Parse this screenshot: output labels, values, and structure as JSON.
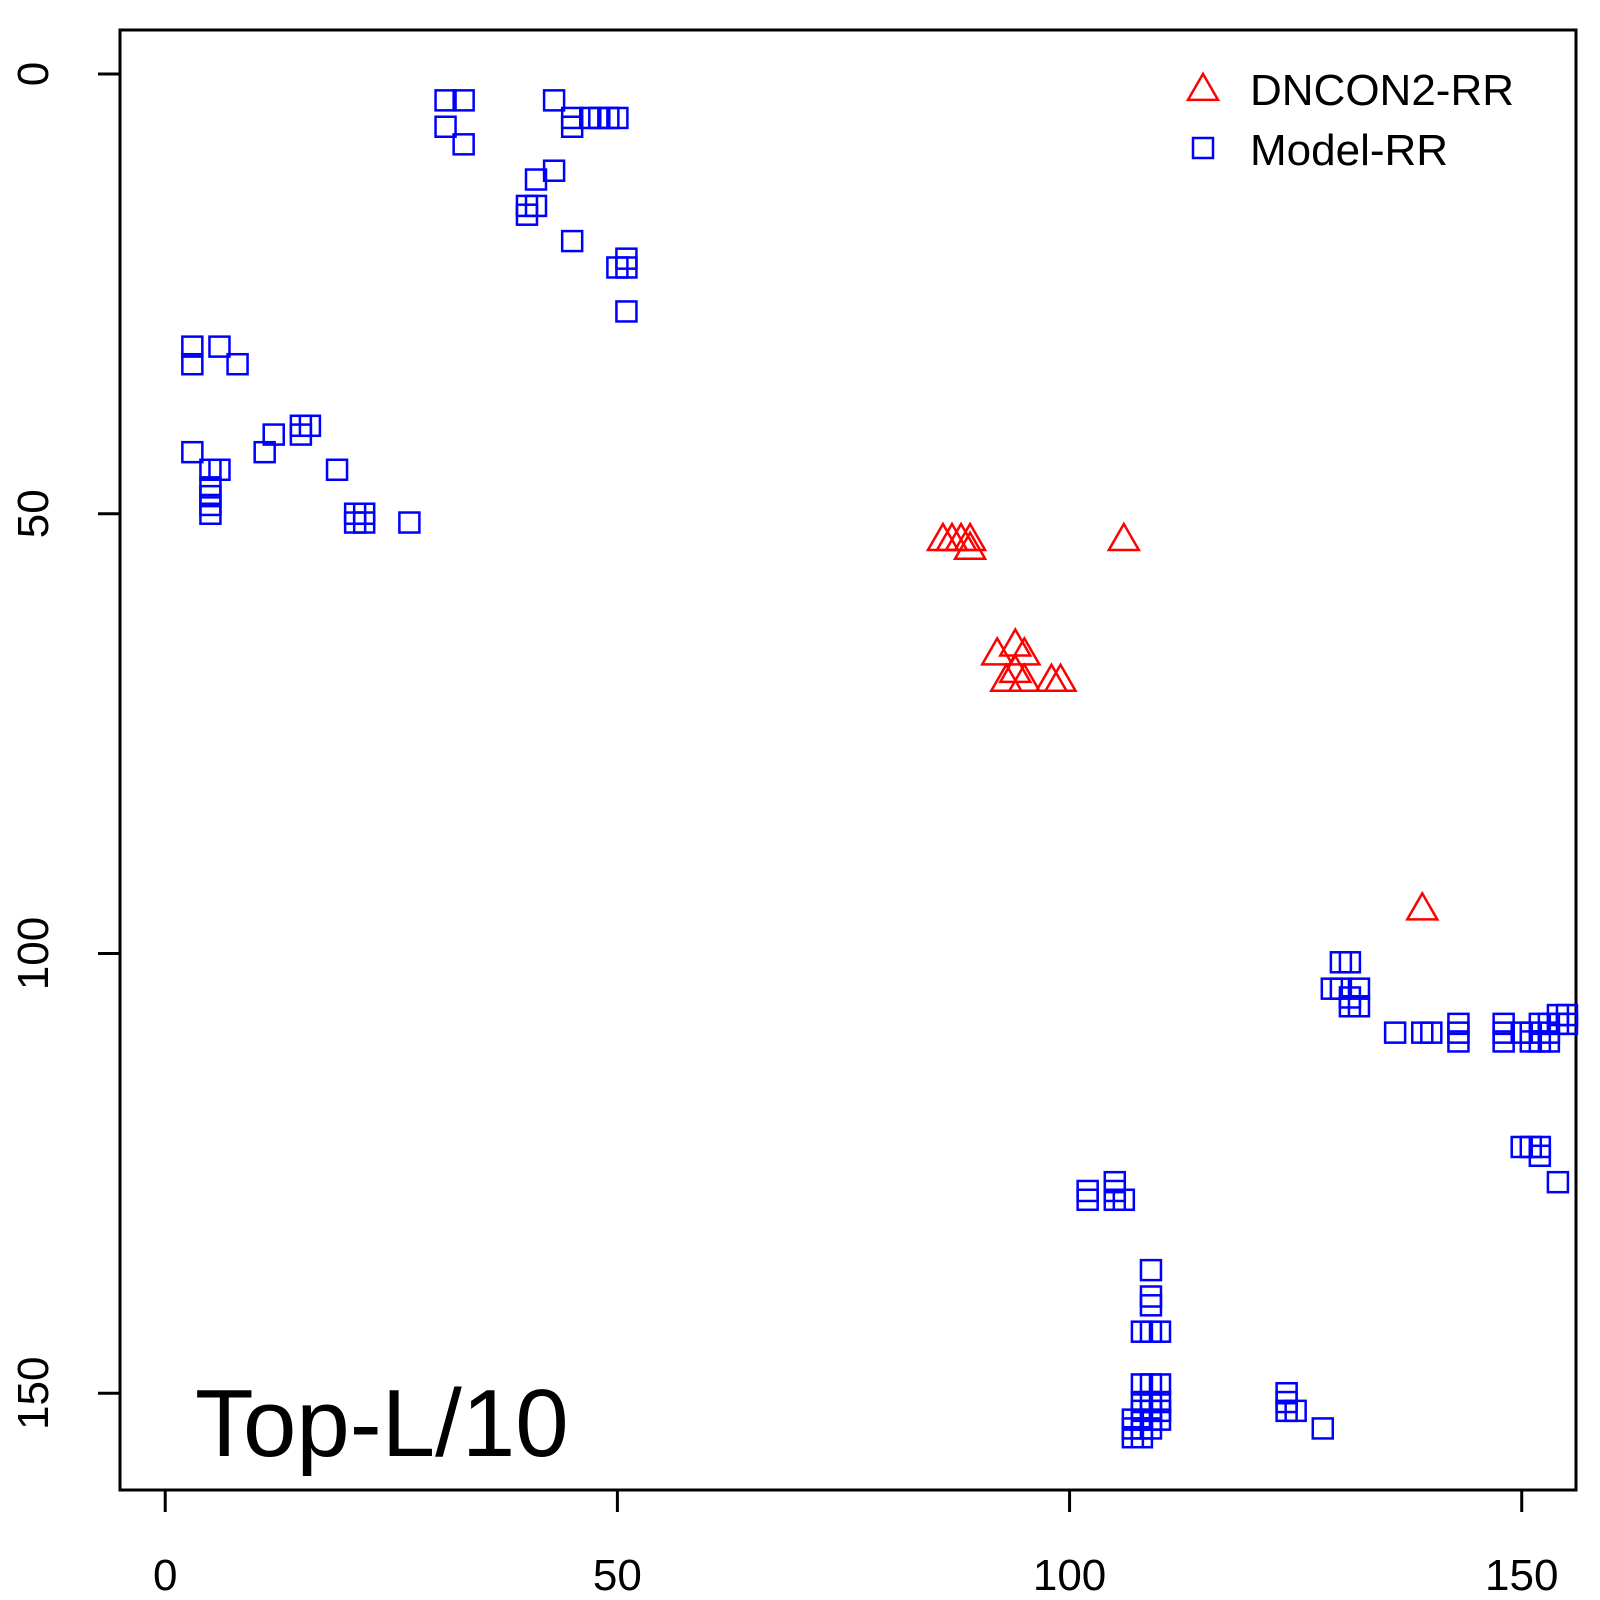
{
  "chart_data": {
    "type": "scatter",
    "title": "",
    "xlabel": "",
    "ylabel": "",
    "annotation": "Top-L/10",
    "xlim": [
      -5,
      156
    ],
    "ylim": [
      -5,
      161
    ],
    "y_inverted": true,
    "x_ticks": [
      "0",
      "50",
      "100",
      "150"
    ],
    "y_ticks": [
      "0",
      "50",
      "100",
      "150"
    ],
    "legend_position": "top-right",
    "legend": [
      {
        "name": "DNCON2-RR",
        "marker": "triangle",
        "color": "#ff0000"
      },
      {
        "name": "Model-RR",
        "marker": "square",
        "color": "#0000ff"
      }
    ],
    "series": [
      {
        "name": "DNCON2-RR",
        "marker": "triangle",
        "color": "#ff0000",
        "points": [
          [
            86,
            53
          ],
          [
            87,
            53
          ],
          [
            88,
            53
          ],
          [
            89,
            53
          ],
          [
            89,
            54
          ],
          [
            106,
            53
          ],
          [
            92,
            66
          ],
          [
            94,
            65
          ],
          [
            95,
            66
          ],
          [
            93,
            69
          ],
          [
            94,
            68
          ],
          [
            95,
            69
          ],
          [
            98,
            69
          ],
          [
            99,
            69
          ],
          [
            139,
            95
          ]
        ]
      },
      {
        "name": "Model-RR",
        "marker": "square",
        "color": "#0000ff",
        "points": [
          [
            31,
            3
          ],
          [
            33,
            3
          ],
          [
            31,
            6
          ],
          [
            33,
            8
          ],
          [
            43,
            3
          ],
          [
            45,
            5
          ],
          [
            45,
            6
          ],
          [
            47,
            5
          ],
          [
            48,
            5
          ],
          [
            49,
            5
          ],
          [
            50,
            5
          ],
          [
            43,
            11
          ],
          [
            41,
            12
          ],
          [
            40,
            15
          ],
          [
            41,
            15
          ],
          [
            40,
            16
          ],
          [
            45,
            19
          ],
          [
            51,
            21
          ],
          [
            51,
            22
          ],
          [
            50,
            22
          ],
          [
            51,
            27
          ],
          [
            3,
            31
          ],
          [
            6,
            31
          ],
          [
            3,
            33
          ],
          [
            8,
            33
          ],
          [
            3,
            43
          ],
          [
            11,
            43
          ],
          [
            12,
            41
          ],
          [
            15,
            40
          ],
          [
            16,
            40
          ],
          [
            15,
            41
          ],
          [
            5,
            45
          ],
          [
            6,
            45
          ],
          [
            19,
            45
          ],
          [
            5,
            47
          ],
          [
            5,
            48
          ],
          [
            5,
            49
          ],
          [
            5,
            50
          ],
          [
            21,
            50
          ],
          [
            22,
            50
          ],
          [
            21,
            51
          ],
          [
            22,
            51
          ],
          [
            27,
            51
          ],
          [
            130,
            101
          ],
          [
            131,
            101
          ],
          [
            129,
            104
          ],
          [
            130,
            104
          ],
          [
            131,
            105
          ],
          [
            132,
            104
          ],
          [
            131,
            106
          ],
          [
            132,
            106
          ],
          [
            136,
            109
          ],
          [
            139,
            109
          ],
          [
            140,
            109
          ],
          [
            143,
            108
          ],
          [
            143,
            109
          ],
          [
            143,
            110
          ],
          [
            148,
            108
          ],
          [
            148,
            109
          ],
          [
            148,
            110
          ],
          [
            150,
            109
          ],
          [
            151,
            109
          ],
          [
            151,
            110
          ],
          [
            152,
            108
          ],
          [
            153,
            108
          ],
          [
            153,
            109
          ],
          [
            152,
            110
          ],
          [
            154,
            107
          ],
          [
            155,
            107
          ],
          [
            154,
            108
          ],
          [
            155,
            108
          ],
          [
            153,
            110
          ],
          [
            150,
            122
          ],
          [
            151,
            122
          ],
          [
            152,
            122
          ],
          [
            152,
            123
          ],
          [
            154,
            126
          ],
          [
            102,
            127
          ],
          [
            102,
            128
          ],
          [
            105,
            126
          ],
          [
            105,
            127
          ],
          [
            105,
            128
          ],
          [
            106,
            128
          ],
          [
            109,
            136
          ],
          [
            109,
            139
          ],
          [
            109,
            140
          ],
          [
            108,
            143
          ],
          [
            109,
            143
          ],
          [
            110,
            143
          ],
          [
            108,
            149
          ],
          [
            109,
            149
          ],
          [
            110,
            149
          ],
          [
            108,
            151
          ],
          [
            109,
            151
          ],
          [
            110,
            151
          ],
          [
            108,
            152
          ],
          [
            109,
            152
          ],
          [
            110,
            152
          ],
          [
            107,
            153
          ],
          [
            108,
            153
          ],
          [
            109,
            153
          ],
          [
            110,
            153
          ],
          [
            107,
            154
          ],
          [
            108,
            154
          ],
          [
            109,
            154
          ],
          [
            107,
            155
          ],
          [
            108,
            155
          ],
          [
            124,
            150
          ],
          [
            124,
            151
          ],
          [
            124,
            152
          ],
          [
            125,
            152
          ],
          [
            128,
            154
          ]
        ]
      }
    ]
  }
}
